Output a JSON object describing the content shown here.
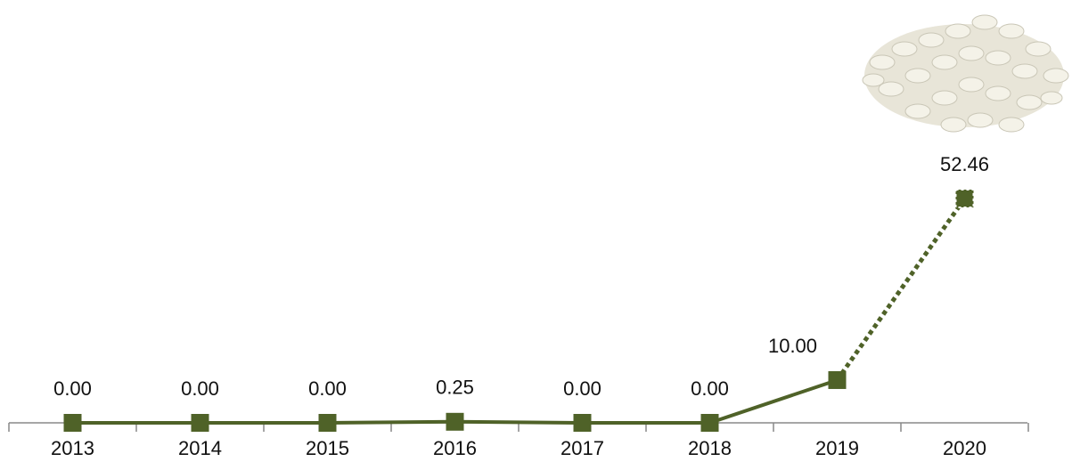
{
  "chart_data": {
    "type": "line",
    "categories": [
      "2013",
      "2014",
      "2015",
      "2016",
      "2017",
      "2018",
      "2019",
      "2020"
    ],
    "series": [
      {
        "color": "#4f6228",
        "values": [
          0,
          0,
          0,
          0.25,
          0,
          0,
          10,
          52.46
        ],
        "value_labels": [
          "0.00",
          "0.00",
          "0.00",
          "0.25",
          "0.00",
          "0.00",
          "10.00",
          "52.46"
        ]
      }
    ],
    "dotted_last_segment": true
  }
}
